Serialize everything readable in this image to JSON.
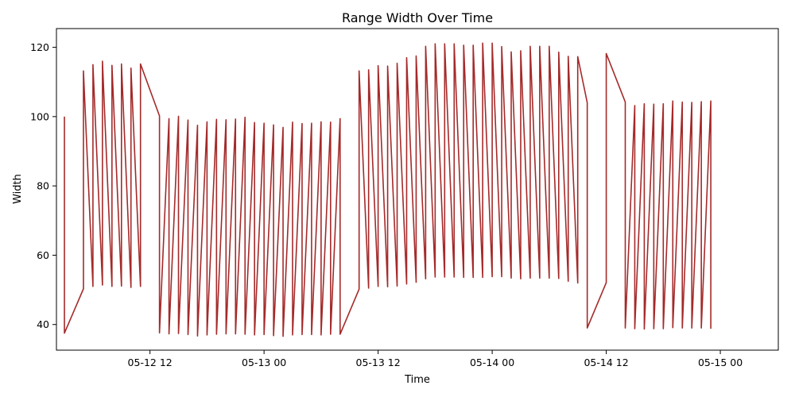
{
  "chart_data": {
    "type": "line",
    "title": "Range Width Over Time",
    "xlabel": "Time",
    "ylabel": "Width",
    "x_tick_labels": [
      "05-12 12",
      "05-13 00",
      "05-13 12",
      "05-14 00",
      "05-14 12",
      "05-15 00"
    ],
    "x_tick_values_hours": [
      12,
      24,
      36,
      48,
      60,
      72
    ],
    "y_ticks": [
      40,
      60,
      80,
      100,
      120
    ],
    "xlim_hours": [
      2.16,
      78.1
    ],
    "ylim": [
      32.6,
      125.4
    ],
    "grid": false,
    "color": "#a52a2a",
    "series": [
      {
        "points": [
          [
            3,
            100
          ],
          [
            3,
            37.5
          ],
          [
            5,
            50.3
          ],
          [
            5,
            113.2
          ],
          [
            6,
            51
          ],
          [
            6,
            115
          ],
          [
            7,
            51.4
          ],
          [
            7,
            116
          ],
          [
            8,
            51
          ],
          [
            8,
            114.8
          ],
          [
            9,
            51.1
          ],
          [
            9,
            115.2
          ],
          [
            10,
            50.7
          ],
          [
            10,
            114
          ],
          [
            11,
            51
          ],
          [
            11,
            115.2
          ],
          [
            13,
            100.2
          ],
          [
            13,
            37.6
          ],
          [
            14,
            99.4
          ],
          [
            14,
            37.3
          ],
          [
            15,
            100.1
          ],
          [
            15,
            37.4
          ],
          [
            16,
            99
          ],
          [
            16,
            37.1
          ],
          [
            17,
            97.5
          ],
          [
            17,
            36.7
          ],
          [
            18,
            98.5
          ],
          [
            18,
            37
          ],
          [
            19,
            99.2
          ],
          [
            19,
            37.2
          ],
          [
            20,
            99.1
          ],
          [
            20,
            37.3
          ],
          [
            21,
            99.3
          ],
          [
            21,
            37.3
          ],
          [
            22,
            99.8
          ],
          [
            22,
            37.2
          ],
          [
            23,
            98.3
          ],
          [
            23,
            37
          ],
          [
            24,
            98.1
          ],
          [
            24,
            37.1
          ],
          [
            25,
            97.6
          ],
          [
            25,
            36.8
          ],
          [
            26,
            96.9
          ],
          [
            26,
            36.6
          ],
          [
            27,
            98.4
          ],
          [
            27,
            37
          ],
          [
            28,
            98
          ],
          [
            28,
            37.1
          ],
          [
            29,
            98.1
          ],
          [
            29,
            37.1
          ],
          [
            30,
            98.5
          ],
          [
            30,
            37
          ],
          [
            31,
            98.4
          ],
          [
            31,
            37.2
          ],
          [
            32,
            99.4
          ],
          [
            32,
            37.2
          ],
          [
            34,
            50.2
          ],
          [
            34,
            113.2
          ],
          [
            35,
            50.5
          ],
          [
            35,
            113.5
          ],
          [
            36,
            51
          ],
          [
            36,
            114.7
          ],
          [
            37,
            50.9
          ],
          [
            37,
            114.6
          ],
          [
            38,
            51.1
          ],
          [
            38,
            115.4
          ],
          [
            39,
            51.7
          ],
          [
            39,
            117
          ],
          [
            40,
            52.2
          ],
          [
            40,
            117.5
          ],
          [
            41,
            53.2
          ],
          [
            41,
            120.3
          ],
          [
            42,
            53.7
          ],
          [
            42,
            121
          ],
          [
            43,
            53.7
          ],
          [
            43,
            121
          ],
          [
            44,
            53.7
          ],
          [
            44,
            121
          ],
          [
            45,
            53.6
          ],
          [
            45,
            120.6
          ],
          [
            46,
            53.6
          ],
          [
            46,
            120.6
          ],
          [
            47,
            53.6
          ],
          [
            47,
            121.2
          ],
          [
            48,
            53.8
          ],
          [
            48,
            121.2
          ],
          [
            49,
            53.8
          ],
          [
            49,
            120.2
          ],
          [
            50,
            53.4
          ],
          [
            50,
            118.7
          ],
          [
            51,
            53.2
          ],
          [
            51,
            119
          ],
          [
            52,
            53.4
          ],
          [
            52,
            120.3
          ],
          [
            53,
            53.4
          ],
          [
            53,
            120.3
          ],
          [
            54,
            53.4
          ],
          [
            54,
            120.3
          ],
          [
            55,
            53.3
          ],
          [
            55,
            118.6
          ],
          [
            56,
            52.5
          ],
          [
            56,
            117.4
          ],
          [
            57,
            52
          ],
          [
            57,
            117.3
          ],
          [
            58,
            104
          ],
          [
            58,
            39
          ],
          [
            60,
            52.1
          ],
          [
            60,
            118.2
          ],
          [
            62,
            104.2
          ],
          [
            62,
            39
          ],
          [
            63,
            103.2
          ],
          [
            63,
            38.8
          ],
          [
            64,
            103.7
          ],
          [
            64,
            38.7
          ],
          [
            65,
            103.6
          ],
          [
            65,
            38.8
          ],
          [
            66,
            103.7
          ],
          [
            66,
            38.8
          ],
          [
            67,
            104.5
          ],
          [
            67,
            39.1
          ],
          [
            68,
            104.2
          ],
          [
            68,
            39
          ],
          [
            69,
            104.1
          ],
          [
            69,
            39
          ],
          [
            70,
            104.3
          ],
          [
            70,
            39
          ],
          [
            71,
            104.5
          ],
          [
            71,
            38.8
          ]
        ]
      }
    ]
  }
}
